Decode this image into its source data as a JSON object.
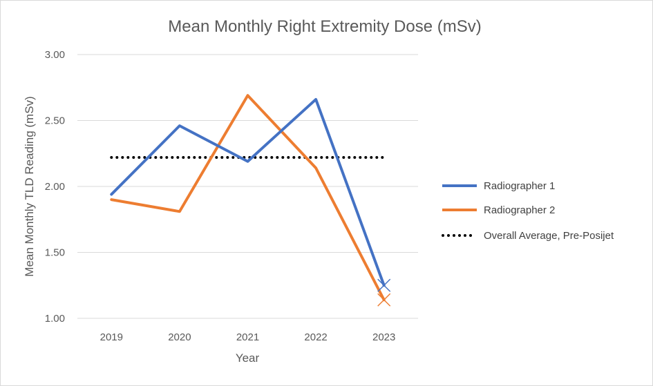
{
  "chart_data": {
    "type": "line",
    "title": "Mean Monthly Right Extremity Dose (mSv)",
    "xlabel": "Year",
    "ylabel": "Mean Monthly  TLD Reading (mSv)",
    "categories": [
      "2019",
      "2020",
      "2021",
      "2022",
      "2023"
    ],
    "ylim": [
      1.0,
      3.0
    ],
    "yticks": [
      "1.00",
      "1.50",
      "2.00",
      "2.50",
      "3.00"
    ],
    "grid": true,
    "legend_position": "right",
    "series": [
      {
        "name": "Radiographer 1",
        "color": "#4472c4",
        "style": "solid",
        "values": [
          1.94,
          2.46,
          2.19,
          2.66,
          1.25
        ],
        "last_marker": "x"
      },
      {
        "name": "Radiographer 2",
        "color": "#ed7d31",
        "style": "solid",
        "values": [
          1.9,
          1.81,
          2.69,
          2.14,
          1.14
        ],
        "last_marker": "x"
      },
      {
        "name": "Overall Average, Pre-Posijet",
        "color": "#000000",
        "style": "dotted",
        "values": [
          2.22,
          2.22,
          2.22,
          2.22,
          2.22
        ]
      }
    ]
  }
}
